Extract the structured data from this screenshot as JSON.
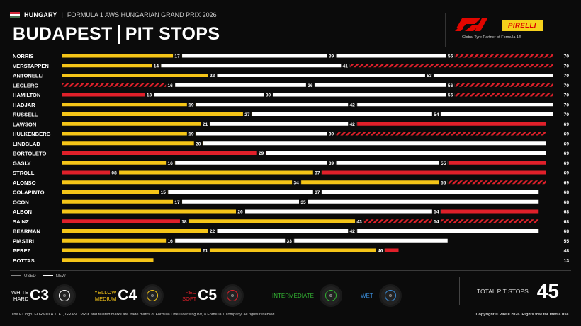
{
  "header": {
    "country": "HUNGARY",
    "event": "FORMULA 1 AWS HUNGARIAN GRAND PRIX 2026",
    "separator": "|",
    "title_left": "BUDAPEST",
    "title_right": "PIT STOPS",
    "sponsor": "PIRELLI",
    "sponsor_tag": "Global Tyre Partner of Formula 1®"
  },
  "colors": {
    "hard": "#ffffff",
    "medium": "#f5c518",
    "soft": "#e0202a",
    "intermediate": "#33b533",
    "wet": "#3a8bd6",
    "background": "#0b0b0b"
  },
  "chart_data": {
    "type": "bar",
    "subtype": "tyre-strategy-stints",
    "x_unit": "laps",
    "xlim": [
      0,
      70
    ],
    "used_new_legend": [
      "USED",
      "NEW"
    ],
    "drivers": [
      {
        "name": "NORRIS",
        "total": 70,
        "stints": [
          {
            "c": "medium",
            "u": 0,
            "to": 17
          },
          {
            "c": "hard",
            "u": 0,
            "to": 39
          },
          {
            "c": "hard",
            "u": 0,
            "to": 56
          },
          {
            "c": "soft",
            "u": 1,
            "to": 70
          }
        ]
      },
      {
        "name": "VERSTAPPEN",
        "total": 70,
        "stints": [
          {
            "c": "medium",
            "u": 0,
            "to": 14
          },
          {
            "c": "hard",
            "u": 0,
            "to": 41
          },
          {
            "c": "soft",
            "u": 1,
            "to": 70
          }
        ]
      },
      {
        "name": "ANTONELLI",
        "total": 70,
        "stints": [
          {
            "c": "medium",
            "u": 0,
            "to": 22
          },
          {
            "c": "hard",
            "u": 0,
            "to": 53
          },
          {
            "c": "hard",
            "u": 0,
            "to": 70
          }
        ]
      },
      {
        "name": "LECLERC",
        "total": 70,
        "stints": [
          {
            "c": "soft",
            "u": 1,
            "to": 16
          },
          {
            "c": "hard",
            "u": 0,
            "to": 36
          },
          {
            "c": "hard",
            "u": 0,
            "to": 56
          },
          {
            "c": "soft",
            "u": 1,
            "to": 70
          }
        ]
      },
      {
        "name": "HAMILTON",
        "total": 70,
        "stints": [
          {
            "c": "soft",
            "u": 0,
            "to": 13
          },
          {
            "c": "hard",
            "u": 0,
            "to": 30
          },
          {
            "c": "hard",
            "u": 0,
            "to": 56
          },
          {
            "c": "soft",
            "u": 1,
            "to": 70
          }
        ]
      },
      {
        "name": "HADJAR",
        "total": 70,
        "stints": [
          {
            "c": "medium",
            "u": 0,
            "to": 19
          },
          {
            "c": "hard",
            "u": 0,
            "to": 42
          },
          {
            "c": "hard",
            "u": 0,
            "to": 70
          }
        ]
      },
      {
        "name": "RUSSELL",
        "total": 70,
        "stints": [
          {
            "c": "medium",
            "u": 0,
            "to": 27
          },
          {
            "c": "hard",
            "u": 0,
            "to": 54
          },
          {
            "c": "hard",
            "u": 0,
            "to": 70
          }
        ]
      },
      {
        "name": "LAWSON",
        "total": 69,
        "stints": [
          {
            "c": "medium",
            "u": 0,
            "to": 21
          },
          {
            "c": "hard",
            "u": 0,
            "to": 42
          },
          {
            "c": "soft",
            "u": 0,
            "to": 69
          }
        ]
      },
      {
        "name": "HULKENBERG",
        "total": 69,
        "stints": [
          {
            "c": "medium",
            "u": 0,
            "to": 19
          },
          {
            "c": "hard",
            "u": 0,
            "to": 39
          },
          {
            "c": "soft",
            "u": 1,
            "to": 69
          }
        ]
      },
      {
        "name": "LINDBLAD",
        "total": 69,
        "stints": [
          {
            "c": "medium",
            "u": 0,
            "to": 20
          },
          {
            "c": "hard",
            "u": 0,
            "to": 69
          }
        ]
      },
      {
        "name": "BORTOLETO",
        "total": 69,
        "stints": [
          {
            "c": "soft",
            "u": 0,
            "to": 29
          },
          {
            "c": "hard",
            "u": 0,
            "to": 69
          }
        ]
      },
      {
        "name": "GASLY",
        "total": 69,
        "stints": [
          {
            "c": "medium",
            "u": 0,
            "to": 16
          },
          {
            "c": "hard",
            "u": 0,
            "to": 39
          },
          {
            "c": "hard",
            "u": 0,
            "to": 55
          },
          {
            "c": "soft",
            "u": 0,
            "to": 69
          }
        ]
      },
      {
        "name": "STROLL",
        "total": 69,
        "stints": [
          {
            "c": "soft",
            "u": 0,
            "to": 8,
            "label": "08"
          },
          {
            "c": "medium",
            "u": 0,
            "to": 37
          },
          {
            "c": "soft",
            "u": 0,
            "to": 69
          }
        ]
      },
      {
        "name": "ALONSO",
        "total": 69,
        "stints": [
          {
            "c": "medium",
            "u": 0,
            "to": 34
          },
          {
            "c": "medium",
            "u": 0,
            "to": 55
          },
          {
            "c": "soft",
            "u": 1,
            "to": 69
          }
        ]
      },
      {
        "name": "COLAPINTO",
        "total": 68,
        "stints": [
          {
            "c": "medium",
            "u": 0,
            "to": 15
          },
          {
            "c": "hard",
            "u": 0,
            "to": 37
          },
          {
            "c": "hard",
            "u": 0,
            "to": 68
          }
        ]
      },
      {
        "name": "OCON",
        "total": 68,
        "stints": [
          {
            "c": "medium",
            "u": 0,
            "to": 17
          },
          {
            "c": "hard",
            "u": 0,
            "to": 35
          },
          {
            "c": "hard",
            "u": 0,
            "to": 68
          }
        ]
      },
      {
        "name": "ALBON",
        "total": 68,
        "stints": [
          {
            "c": "medium",
            "u": 0,
            "to": 26
          },
          {
            "c": "hard",
            "u": 0,
            "to": 54
          },
          {
            "c": "soft",
            "u": 0,
            "to": 68
          }
        ]
      },
      {
        "name": "SAINZ",
        "total": 68,
        "stints": [
          {
            "c": "soft",
            "u": 0,
            "to": 18
          },
          {
            "c": "medium",
            "u": 0,
            "to": 43
          },
          {
            "c": "soft",
            "u": 1,
            "to": 54
          },
          {
            "c": "soft",
            "u": 1,
            "to": 68
          }
        ]
      },
      {
        "name": "BEARMAN",
        "total": 68,
        "stints": [
          {
            "c": "medium",
            "u": 0,
            "to": 22
          },
          {
            "c": "hard",
            "u": 0,
            "to": 42
          },
          {
            "c": "hard",
            "u": 0,
            "to": 68
          }
        ]
      },
      {
        "name": "PIASTRI",
        "total": 55,
        "stints": [
          {
            "c": "medium",
            "u": 0,
            "to": 16
          },
          {
            "c": "hard",
            "u": 0,
            "to": 33
          },
          {
            "c": "hard",
            "u": 0,
            "to": 55
          }
        ]
      },
      {
        "name": "PEREZ",
        "total": 48,
        "stints": [
          {
            "c": "medium",
            "u": 0,
            "to": 21
          },
          {
            "c": "medium",
            "u": 0,
            "to": 46
          },
          {
            "c": "soft",
            "u": 0,
            "to": 48
          }
        ]
      },
      {
        "name": "BOTTAS",
        "total": 13,
        "stints": [
          {
            "c": "medium",
            "u": 0,
            "to": 13,
            "nolabel": true
          }
        ]
      }
    ]
  },
  "legend": {
    "used": "USED",
    "new": "NEW",
    "tyres": [
      {
        "line1": "WHITE",
        "line2": "HARD",
        "code": "C3",
        "color_key": "hard"
      },
      {
        "line1": "YELLOW",
        "line2": "MEDIUM",
        "code": "C4",
        "color_key": "medium"
      },
      {
        "line1": "RED",
        "line2": "SOFT",
        "code": "C5",
        "color_key": "soft"
      }
    ],
    "intermediate": "INTERMEDIATE",
    "wet": "WET"
  },
  "total": {
    "label": "TOTAL PIT STOPS",
    "value": "45"
  },
  "footer": {
    "left": "The F1 logo, FORMULA 1, F1, GRAND PRIX and related marks are trade marks of Formula One Licensing BV, a Formula 1 company. All rights reserved.",
    "right": "Copyright © Pirelli 2026. Rights free for media use."
  }
}
